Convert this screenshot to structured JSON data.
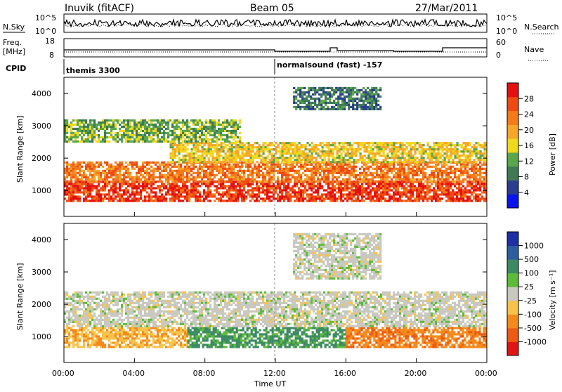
{
  "header": {
    "station": "Inuvik (fitACF)",
    "beam": "Beam 05",
    "date": "27/Mar/2011"
  },
  "noise_panel": {
    "left_label": "N.Sky",
    "left_ticks": [
      "10^5",
      "10^0"
    ],
    "right_ticks": [
      "10^5",
      "10^0"
    ],
    "right_label": "N.Search"
  },
  "freq_panel": {
    "left_label_1": "Freq.",
    "left_label_2": "[MHz]",
    "left_ticks": [
      "18",
      "8"
    ],
    "right_ticks": [
      "60",
      "0"
    ],
    "right_label": "Nave"
  },
  "cpid": {
    "label": "CPID",
    "segments": [
      {
        "name": "themis 3300",
        "start_hour": 0
      },
      {
        "name": "normalsound (fast) -157",
        "start_hour": 12
      }
    ]
  },
  "power_panel": {
    "ylabel": "Slant Range [km]",
    "yticks": [
      "4000",
      "3000",
      "2000",
      "1000"
    ],
    "colorbar_label": "Power [dB]",
    "colorbar_ticks": [
      "28",
      "24",
      "20",
      "16",
      "12",
      "8",
      "4"
    ],
    "colors": [
      "#0a14ee",
      "#2a3d8f",
      "#3f7a55",
      "#5aa64a",
      "#f0d81c",
      "#f6a628",
      "#f47a1a",
      "#ee4a12",
      "#e41010"
    ]
  },
  "velocity_panel": {
    "ylabel": "Slant Range [km]",
    "yticks": [
      "4000",
      "3000",
      "2000",
      "1000"
    ],
    "colorbar_label": "Velocity [m s⁻¹]",
    "colorbar_ticks": [
      "1000",
      "500",
      "100",
      "25",
      "-25",
      "-100",
      "-500",
      "-1000"
    ],
    "colors": [
      "#1c2fa6",
      "#2b5e9e",
      "#3c8a62",
      "#5dbb3a",
      "#c8c8c0",
      "#f7c34a",
      "#f58a1c",
      "#ec5a14",
      "#e01414"
    ]
  },
  "xaxis": {
    "ticks": [
      "00:00",
      "04:00",
      "08:00",
      "12:00",
      "16:00",
      "20:00",
      "00:00"
    ],
    "label": "Time UT"
  },
  "chart_data": {
    "type": "heatmap",
    "title": "Inuvik (fitACF)  Beam 05  27/Mar/2011",
    "xlabel": "Time UT",
    "ylabel": "Slant Range [km]",
    "x_range_hours": [
      0,
      24
    ],
    "y_range_km": [
      200,
      4500
    ],
    "power_scale_db": [
      0,
      30
    ],
    "velocity_scale_ms": [
      -1000,
      1000
    ],
    "power_bands": [
      {
        "range_km": [
          700,
          1300
        ],
        "power_db": 26,
        "hours": [
          0,
          24
        ]
      },
      {
        "range_km": [
          1300,
          1900
        ],
        "power_db": 22,
        "hours": [
          0,
          24
        ]
      },
      {
        "range_km": [
          1900,
          2500
        ],
        "power_db": 16,
        "hours": [
          6,
          24
        ]
      },
      {
        "range_km": [
          2500,
          3200
        ],
        "power_db": 12,
        "hours": [
          0,
          10
        ]
      },
      {
        "range_km": [
          3500,
          4200
        ],
        "power_db": 8,
        "hours": [
          13,
          18
        ]
      }
    ],
    "velocity_bands": [
      {
        "range_km": [
          700,
          1300
        ],
        "velocity": -300,
        "hours": [
          0,
          7
        ]
      },
      {
        "range_km": [
          700,
          1300
        ],
        "velocity": 400,
        "hours": [
          7,
          16
        ]
      },
      {
        "range_km": [
          700,
          1300
        ],
        "velocity": -500,
        "hours": [
          16,
          24
        ]
      },
      {
        "range_km": [
          1300,
          2400
        ],
        "velocity": 0,
        "hours": [
          0,
          24
        ]
      },
      {
        "range_km": [
          2800,
          4200
        ],
        "velocity": 0,
        "hours": [
          13,
          18
        ]
      }
    ]
  }
}
